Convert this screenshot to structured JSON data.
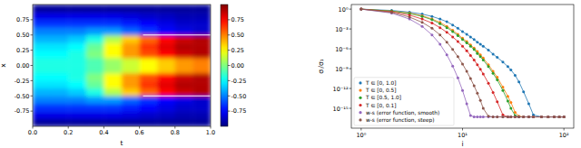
{
  "chart_data": [
    {
      "type": "heatmap",
      "xlabel": "t",
      "ylabel": "x",
      "xlim": [
        0,
        1
      ],
      "ylim": [
        -1,
        1
      ],
      "xticks": [
        {
          "value": 0,
          "label": "0.0"
        },
        0.2,
        0.4,
        0.6,
        0.8,
        {
          "value": 1,
          "label": "1.0"
        }
      ],
      "yticks": [
        -0.75,
        {
          "value": -0.5,
          "label": "-0.50"
        },
        -0.25,
        {
          "value": 0,
          "label": "0.00"
        },
        0.25,
        {
          "value": 0.5,
          "label": "0.50"
        },
        0.75
      ],
      "cells": [
        [
          -0.95,
          -0.95,
          -0.95,
          -0.95,
          -0.95,
          -0.95,
          -0.95,
          -0.95,
          -0.95,
          -0.95
        ],
        [
          -0.8,
          -0.8,
          -0.8,
          -0.8,
          -0.8,
          -0.82,
          -0.85,
          -0.87,
          -0.9,
          -0.9
        ],
        [
          -0.65,
          -0.65,
          -0.65,
          -0.65,
          -0.65,
          -0.7,
          -0.75,
          -0.8,
          -0.85,
          -0.85
        ],
        [
          -0.5,
          -0.5,
          -0.5,
          -0.45,
          -0.45,
          -0.55,
          -0.65,
          -0.75,
          -0.8,
          -0.85
        ],
        [
          -0.4,
          -0.4,
          -0.35,
          -0.2,
          0.1,
          0.35,
          0.55,
          0.75,
          0.85,
          0.9
        ],
        [
          -0.3,
          -0.3,
          -0.25,
          -0.05,
          0.25,
          0.45,
          0.65,
          0.8,
          0.9,
          0.9
        ],
        [
          -0.25,
          -0.25,
          -0.2,
          0.0,
          0.25,
          0.45,
          0.6,
          0.75,
          0.85,
          0.9
        ],
        [
          -0.2,
          -0.2,
          -0.2,
          -0.1,
          0.05,
          0.15,
          0.25,
          0.35,
          0.45,
          0.5
        ],
        [
          -0.2,
          -0.2,
          -0.2,
          -0.1,
          0.05,
          0.15,
          0.25,
          0.35,
          0.45,
          0.5
        ],
        [
          -0.25,
          -0.25,
          -0.2,
          0.0,
          0.25,
          0.45,
          0.6,
          0.75,
          0.85,
          0.9
        ],
        [
          -0.3,
          -0.3,
          -0.25,
          -0.05,
          0.25,
          0.45,
          0.65,
          0.8,
          0.9,
          0.9
        ],
        [
          -0.4,
          -0.4,
          -0.35,
          -0.2,
          0.1,
          0.35,
          0.55,
          0.75,
          0.85,
          0.9
        ],
        [
          -0.5,
          -0.5,
          -0.5,
          -0.45,
          -0.45,
          -0.55,
          -0.65,
          -0.75,
          -0.8,
          -0.85
        ],
        [
          -0.65,
          -0.65,
          -0.65,
          -0.65,
          -0.65,
          -0.7,
          -0.75,
          -0.8,
          -0.85,
          -0.85
        ],
        [
          -0.8,
          -0.8,
          -0.8,
          -0.8,
          -0.8,
          -0.82,
          -0.85,
          -0.87,
          -0.9,
          -0.9
        ],
        [
          -0.95,
          -0.95,
          -0.95,
          -0.95,
          -0.95,
          -0.95,
          -0.95,
          -0.95,
          -0.95,
          -0.95
        ]
      ],
      "lines": [
        {
          "x": [
            0.62,
            1.0
          ],
          "y": [
            0.5,
            0.5
          ],
          "color": "#ffffff"
        },
        {
          "x": [
            0.62,
            1.0
          ],
          "y": [
            -0.5,
            -0.5
          ],
          "color": "#ffffff"
        }
      ],
      "colorbar_range": [
        -1,
        1
      ],
      "colorbar_ticks": [
        -0.75,
        {
          "value": -0.5,
          "label": "-0.50"
        },
        -0.25,
        {
          "value": 0,
          "label": "0.00"
        },
        0.25,
        {
          "value": 0.5,
          "label": "0.50"
        },
        0.75
      ]
    },
    {
      "type": "line",
      "xlabel": "i",
      "ylabel": "σᵢ/σ₁",
      "log": true,
      "marker": "circle",
      "legend": "lower left",
      "xlim": [
        0.8,
        125
      ],
      "ylim": [
        1e-18,
        5
      ],
      "xticks": [
        {
          "value": 1,
          "label": "10⁰"
        },
        {
          "value": 10,
          "label": "10¹"
        },
        {
          "value": 100,
          "label": "10²"
        }
      ],
      "yticks": [
        {
          "value": 1,
          "label": "10⁰"
        },
        {
          "value": 0.001,
          "label": "10⁻³"
        },
        {
          "value": 1e-06,
          "label": "10⁻⁶"
        },
        {
          "value": 1e-09,
          "label": "10⁻⁹"
        },
        {
          "value": 1e-12,
          "label": "10⁻¹²"
        },
        {
          "value": 1e-15,
          "label": "10⁻¹⁵"
        }
      ],
      "x": [
        1,
        2,
        3,
        4,
        5,
        6,
        7,
        8,
        9,
        10,
        11,
        12,
        13,
        14,
        15,
        16,
        18,
        20,
        22,
        25,
        28,
        30,
        33,
        36,
        40,
        45,
        50,
        60,
        70,
        80,
        90,
        100
      ],
      "series": [
        {
          "name": "T ∈ [0, 1.0]",
          "color": "#1f77b4",
          "values": [
            1,
            0.631,
            0.355,
            0.178,
            0.0794,
            0.0316,
            0.0126,
            0.00398,
            0.00126,
            0.000398,
            0.000158,
            6.31e-05,
            2.51e-05,
            1e-05,
            5.01e-06,
            2.51e-06,
            6.31e-07,
            1.58e-07,
            5.01e-08,
            1e-08,
            2e-09,
            6.31e-10,
            1e-10,
            1e-11,
            3.16e-13,
            5.01e-15,
            1e-16,
            5.01e-17,
            5.01e-17,
            5.01e-17,
            5.01e-17,
            5.01e-17
          ]
        },
        {
          "name": "T ∈ [0, 0.5]",
          "color": "#ff7f0e",
          "values": [
            1,
            0.501,
            0.251,
            0.1,
            0.0316,
            0.01,
            0.00251,
            0.000631,
            0.000158,
            3.98e-05,
            1.26e-05,
            3.98e-06,
            1.26e-06,
            3.98e-07,
            1.26e-07,
            3.98e-08,
            3.98e-09,
            3.98e-10,
            5.01e-11,
            1.58e-12,
            6.31e-14,
            7.94e-15,
            2.51e-16,
            6.31e-17,
            5.01e-17,
            5.01e-17,
            5.01e-17,
            5.01e-17,
            5.01e-17,
            5.01e-17,
            5.01e-17,
            5.01e-17
          ]
        },
        {
          "name": "T ∈ [0.5, 1.0]",
          "color": "#2ca02c",
          "values": [
            1,
            0.501,
            0.224,
            0.0794,
            0.0251,
            0.00631,
            0.00158,
            0.000398,
            0.0001,
            2.51e-05,
            7.94e-06,
            2.51e-06,
            7.94e-07,
            2e-07,
            6.31e-08,
            2e-08,
            2e-09,
            2e-10,
            2e-11,
            5.01e-13,
            1.26e-14,
            1e-15,
            7.94e-17,
            5.01e-17,
            5.01e-17,
            5.01e-17,
            5.01e-17,
            5.01e-17,
            5.01e-17,
            5.01e-17,
            5.01e-17,
            5.01e-17
          ]
        },
        {
          "name": "T ∈ [0, 0.1]",
          "color": "#d62728",
          "values": [
            1,
            0.398,
            0.126,
            0.0316,
            0.00794,
            0.00158,
            0.000316,
            6.31e-05,
            1.26e-05,
            2.51e-06,
            5.01e-07,
            1e-07,
            2e-08,
            3.98e-09,
            7.94e-10,
            1.58e-10,
            6.31e-12,
            2.51e-13,
            1e-14,
            1e-16,
            5.01e-17,
            5.01e-17,
            5.01e-17,
            5.01e-17,
            5.01e-17,
            5.01e-17,
            5.01e-17,
            5.01e-17,
            5.01e-17,
            5.01e-17,
            5.01e-17,
            5.01e-17
          ]
        },
        {
          "name": "w-s (error function, smooth)",
          "color": "#9467bd",
          "values": [
            1,
            0.251,
            0.0316,
            0.00251,
            0.000126,
            5.01e-06,
            1.26e-07,
            2.51e-09,
            3.98e-11,
            5.01e-13,
            5.01e-15,
            7.94e-17,
            5.01e-17,
            5.01e-17,
            5.01e-17,
            5.01e-17,
            5.01e-17,
            5.01e-17,
            5.01e-17,
            5.01e-17,
            5.01e-17,
            5.01e-17,
            5.01e-17,
            5.01e-17,
            5.01e-17,
            5.01e-17,
            5.01e-17,
            5.01e-17,
            5.01e-17,
            5.01e-17,
            5.01e-17,
            5.01e-17
          ]
        },
        {
          "name": "w-s (error function, steep)",
          "color": "#8c564b",
          "values": [
            1,
            0.316,
            0.0631,
            0.01,
            0.00126,
            0.000126,
            1e-05,
            7.94e-07,
            6.31e-08,
            5.01e-09,
            3.98e-10,
            3.16e-11,
            2.51e-12,
            2e-13,
            1.58e-14,
            1e-15,
            6.31e-17,
            5.01e-17,
            5.01e-17,
            5.01e-17,
            5.01e-17,
            5.01e-17,
            5.01e-17,
            5.01e-17,
            5.01e-17,
            5.01e-17,
            5.01e-17,
            5.01e-17,
            5.01e-17,
            5.01e-17,
            5.01e-17,
            5.01e-17
          ]
        }
      ]
    }
  ]
}
